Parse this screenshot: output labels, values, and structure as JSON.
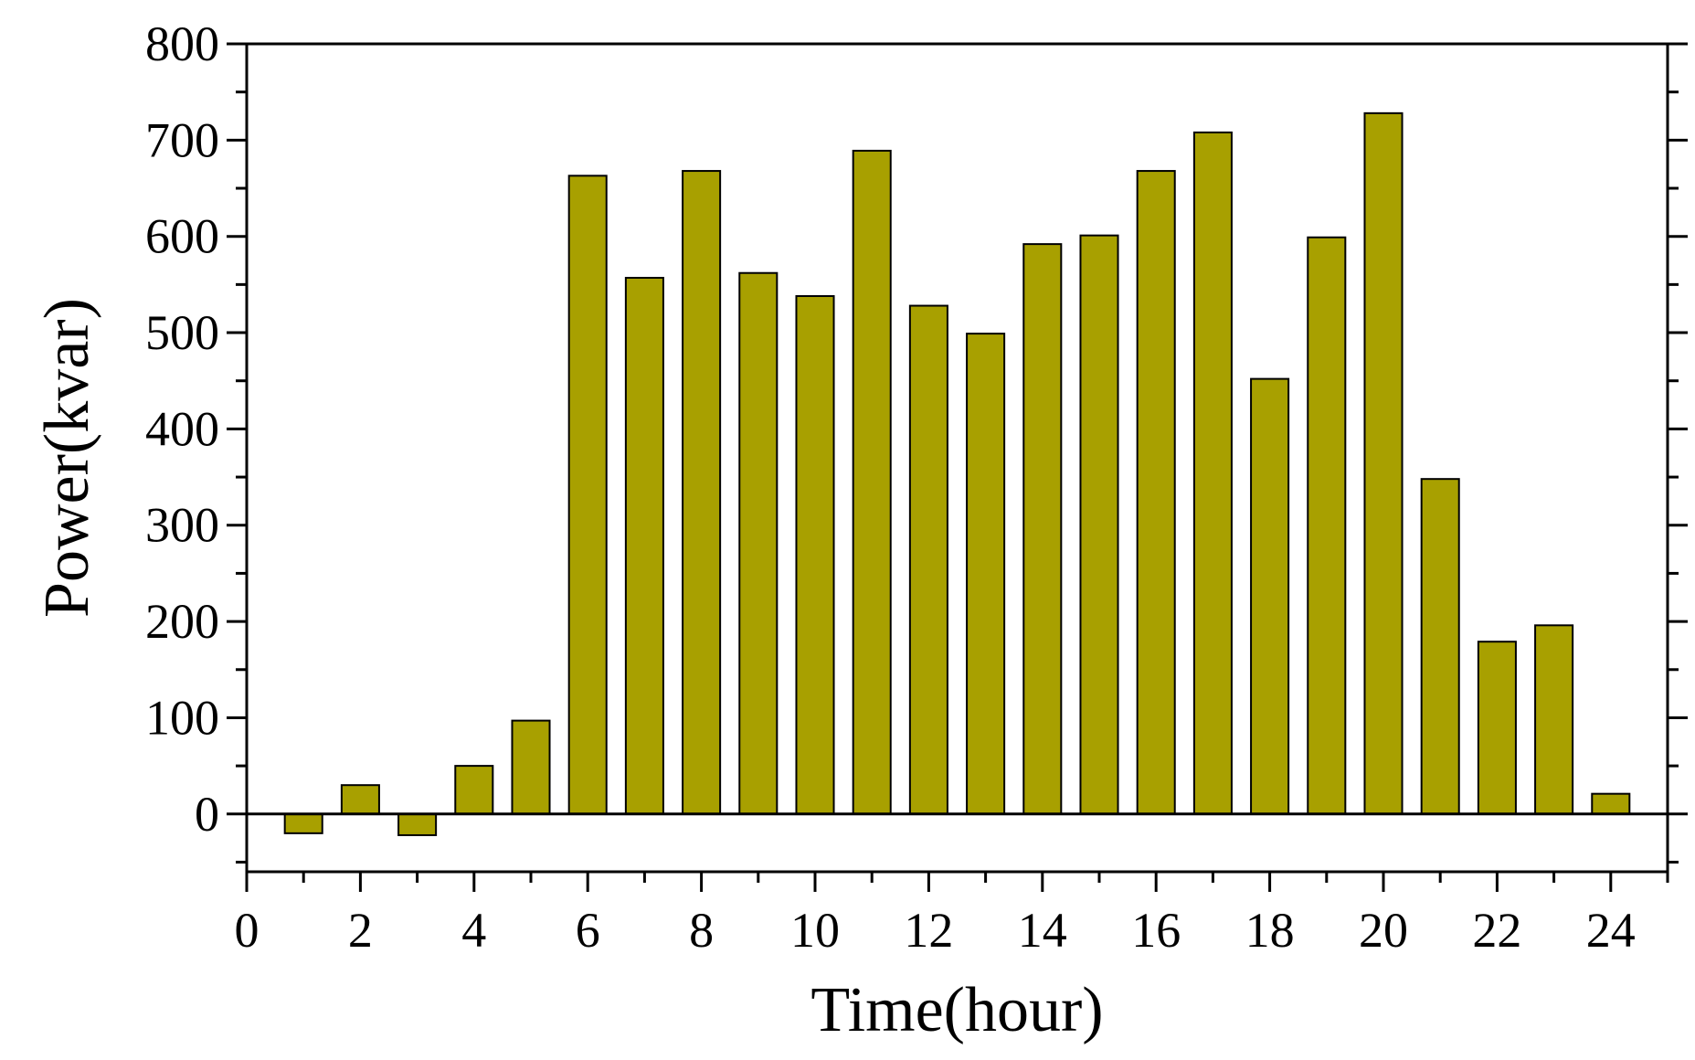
{
  "chart_data": {
    "type": "bar",
    "x": [
      1,
      2,
      3,
      4,
      5,
      6,
      7,
      8,
      9,
      10,
      11,
      12,
      13,
      14,
      15,
      16,
      17,
      18,
      19,
      20,
      21,
      22,
      23,
      24
    ],
    "values": [
      -20,
      30,
      -22,
      50,
      97,
      663,
      557,
      668,
      562,
      538,
      689,
      528,
      499,
      592,
      601,
      668,
      708,
      452,
      599,
      728,
      348,
      179,
      196,
      21
    ],
    "xlabel": "Time(hour)",
    "ylabel": "Power(kvar)",
    "xlim": [
      0,
      25
    ],
    "ylim": [
      -60,
      800
    ],
    "xticks": [
      0,
      2,
      4,
      6,
      8,
      10,
      12,
      14,
      16,
      18,
      20,
      22,
      24
    ],
    "yticks": [
      0,
      100,
      200,
      300,
      400,
      500,
      600,
      700,
      800
    ],
    "grid": false,
    "bar_color": "#A8A000"
  }
}
